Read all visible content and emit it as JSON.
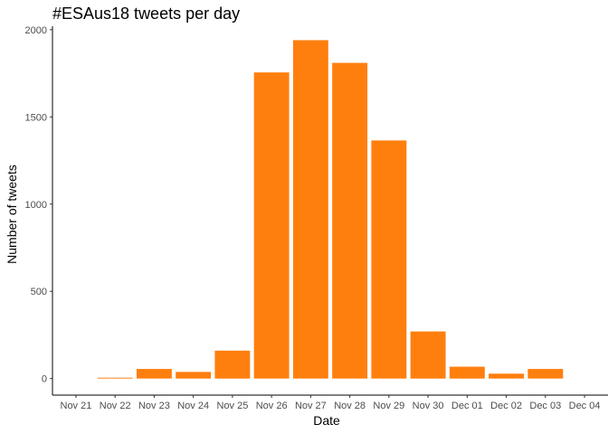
{
  "chart_data": {
    "type": "bar",
    "title": "#ESAus18 tweets per day",
    "xlabel": "Date",
    "ylabel": "Number of tweets",
    "ylim": [
      -95,
      2020
    ],
    "yticks": [
      0,
      500,
      1000,
      1500,
      2000
    ],
    "categories": [
      "Nov 21",
      "Nov 22",
      "Nov 23",
      "Nov 24",
      "Nov 25",
      "Nov 26",
      "Nov 27",
      "Nov 28",
      "Nov 29",
      "Nov 30",
      "Dec 01",
      "Dec 02",
      "Dec 03",
      "Dec 04"
    ],
    "values": [
      0,
      5,
      55,
      38,
      160,
      1755,
      1940,
      1810,
      1365,
      270,
      68,
      28,
      55,
      0
    ],
    "bar_color": "#ff7f0e",
    "grid": false
  }
}
